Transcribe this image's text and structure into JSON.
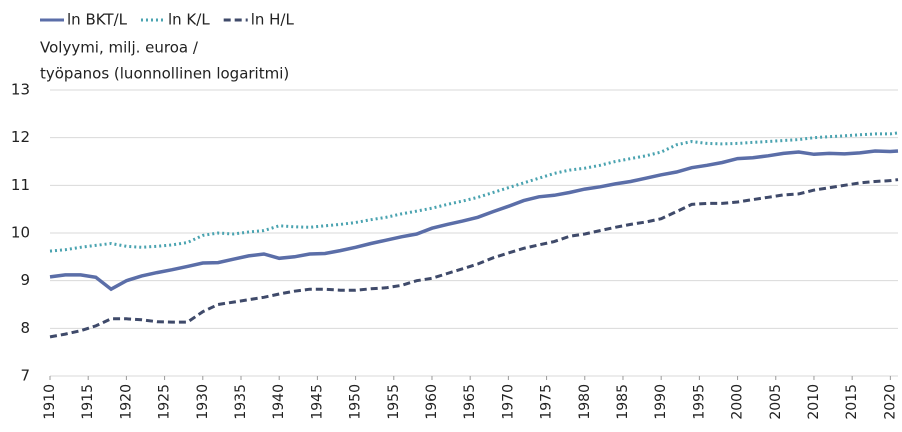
{
  "chart_data": {
    "type": "line",
    "ylabel_lines": [
      "Volyymi, milj. euroa /",
      "työpanos (luonnollinen logaritmi)"
    ],
    "x": [
      1910,
      1912,
      1914,
      1916,
      1918,
      1920,
      1922,
      1924,
      1926,
      1928,
      1930,
      1932,
      1934,
      1936,
      1938,
      1940,
      1942,
      1944,
      1946,
      1948,
      1950,
      1952,
      1954,
      1956,
      1958,
      1960,
      1962,
      1964,
      1966,
      1968,
      1970,
      1972,
      1974,
      1976,
      1978,
      1980,
      1982,
      1984,
      1986,
      1988,
      1990,
      1992,
      1994,
      1996,
      1998,
      2000,
      2002,
      2004,
      2006,
      2008,
      2010,
      2012,
      2014,
      2016,
      2018,
      2020,
      2021
    ],
    "series": [
      {
        "name": "ln BKT/L",
        "color": "#5b6ea8",
        "dash": "solid",
        "values": [
          9.08,
          9.12,
          9.12,
          9.07,
          8.82,
          9.0,
          9.1,
          9.17,
          9.23,
          9.3,
          9.37,
          9.38,
          9.45,
          9.52,
          9.56,
          9.47,
          9.5,
          9.56,
          9.57,
          9.63,
          9.7,
          9.78,
          9.85,
          9.92,
          9.98,
          10.1,
          10.18,
          10.25,
          10.33,
          10.45,
          10.56,
          10.68,
          10.76,
          10.79,
          10.85,
          10.92,
          10.97,
          11.03,
          11.08,
          11.15,
          11.22,
          11.28,
          11.37,
          11.42,
          11.48,
          11.56,
          11.58,
          11.62,
          11.67,
          11.7,
          11.65,
          11.67,
          11.66,
          11.68,
          11.72,
          11.71,
          11.72
        ]
      },
      {
        "name": "ln K/L",
        "color": "#4aa3b0",
        "dash": "dotted",
        "values": [
          9.62,
          9.65,
          9.7,
          9.74,
          9.78,
          9.72,
          9.7,
          9.72,
          9.75,
          9.8,
          9.95,
          10.0,
          9.98,
          10.02,
          10.05,
          10.15,
          10.13,
          10.12,
          10.15,
          10.18,
          10.22,
          10.28,
          10.33,
          10.4,
          10.46,
          10.52,
          10.6,
          10.67,
          10.75,
          10.85,
          10.95,
          11.05,
          11.15,
          11.25,
          11.32,
          11.36,
          11.42,
          11.5,
          11.56,
          11.62,
          11.7,
          11.85,
          11.92,
          11.88,
          11.87,
          11.88,
          11.9,
          11.92,
          11.94,
          11.96,
          12.0,
          12.02,
          12.04,
          12.06,
          12.08,
          12.08,
          12.1
        ]
      },
      {
        "name": "ln H/L",
        "color": "#3f4a6a",
        "dash": "dashed",
        "values": [
          7.82,
          7.88,
          7.95,
          8.05,
          8.2,
          8.2,
          8.18,
          8.14,
          8.13,
          8.13,
          8.35,
          8.5,
          8.55,
          8.6,
          8.65,
          8.72,
          8.78,
          8.82,
          8.82,
          8.8,
          8.8,
          8.83,
          8.85,
          8.9,
          9.0,
          9.05,
          9.15,
          9.25,
          9.35,
          9.48,
          9.58,
          9.68,
          9.75,
          9.82,
          9.93,
          9.98,
          10.05,
          10.12,
          10.18,
          10.23,
          10.3,
          10.45,
          10.6,
          10.62,
          10.62,
          10.65,
          10.7,
          10.75,
          10.8,
          10.82,
          10.9,
          10.95,
          11.0,
          11.05,
          11.08,
          11.1,
          11.12
        ]
      }
    ],
    "xlim": [
      1910,
      2021
    ],
    "xticks": [
      1910,
      1915,
      1920,
      1925,
      1930,
      1935,
      1940,
      1945,
      1950,
      1955,
      1960,
      1965,
      1970,
      1975,
      1980,
      1985,
      1990,
      1995,
      2000,
      2005,
      2010,
      2015,
      2020
    ],
    "ylim": [
      7,
      13
    ],
    "yticks": [
      7,
      8,
      9,
      10,
      11,
      12,
      13
    ],
    "grid": true
  }
}
